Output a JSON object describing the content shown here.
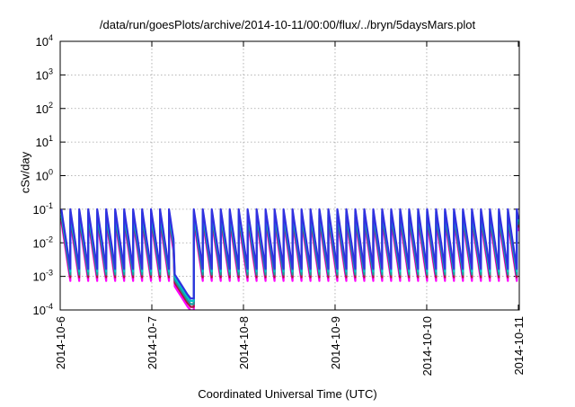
{
  "chart_data": {
    "type": "line",
    "title": "/data/run/goesPlots/archive/2014-10-11/00:00/flux/../bryn/5daysMars.plot",
    "xlabel": "Coordinated Universal Time (UTC)",
    "ylabel": "cSv/day",
    "yscale": "log",
    "ylim": [
      0.0001,
      10000
    ],
    "y_ticks": [
      {
        "value": 0.0001,
        "base": "10",
        "exp": "-4"
      },
      {
        "value": 0.001,
        "base": "10",
        "exp": "-3"
      },
      {
        "value": 0.01,
        "base": "10",
        "exp": "-2"
      },
      {
        "value": 0.1,
        "base": "10",
        "exp": "-1"
      },
      {
        "value": 1,
        "base": "10",
        "exp": "0"
      },
      {
        "value": 10,
        "base": "10",
        "exp": "1"
      },
      {
        "value": 100,
        "base": "10",
        "exp": "2"
      },
      {
        "value": 1000,
        "base": "10",
        "exp": "3"
      },
      {
        "value": 10000,
        "base": "10",
        "exp": "4"
      }
    ],
    "xlim": [
      "2014-10-06T00:00",
      "2014-10-11T00:15"
    ],
    "x_ticks": [
      "2014-10-6",
      "2014-10-7",
      "2014-10-8",
      "2014-10-9",
      "2014-10-10",
      "2014-10-11"
    ],
    "grid": true,
    "pattern": {
      "period_hours": 2.35,
      "peak": 0.08,
      "decay_per_period": 60,
      "gap": {
        "start": "2014-10-07T06:00",
        "end": "2014-10-07T11:00",
        "min_value": 0.00011
      }
    },
    "series": [
      {
        "color": "#ff00ff",
        "scale": 0.55
      },
      {
        "color": "#b01040",
        "scale": 0.7
      },
      {
        "color": "#1a9a9a",
        "scale": 0.85
      },
      {
        "color": "#00c8c8",
        "scale": 1.05
      },
      {
        "color": "#3030e0",
        "scale": 1.25
      }
    ]
  }
}
